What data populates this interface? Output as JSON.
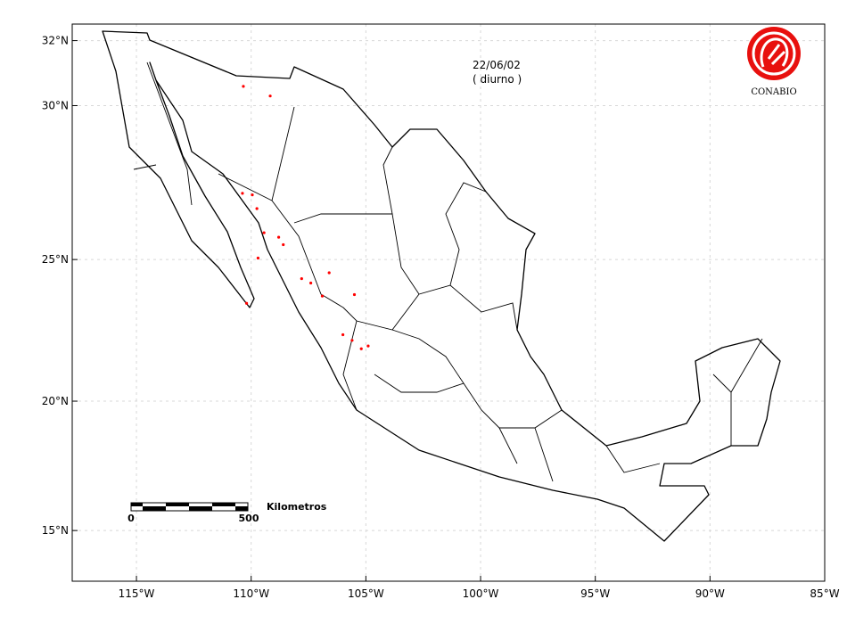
{
  "map": {
    "date": "22/06/02",
    "period": "( diurno )",
    "logo_text": "CONABIO",
    "scale_bar": {
      "start_label": "0",
      "end_label": "500",
      "unit": "Kilometros"
    },
    "xlim": [
      -117.8,
      -85
    ],
    "ylim": [
      12.9,
      32.5
    ],
    "xticks": [
      {
        "value": -115,
        "label": "115°W"
      },
      {
        "value": -110,
        "label": "110°W"
      },
      {
        "value": -105,
        "label": "105°W"
      },
      {
        "value": -100,
        "label": "100°W"
      },
      {
        "value": -95,
        "label": "95°W"
      },
      {
        "value": -90,
        "label": "90°W"
      },
      {
        "value": -85,
        "label": "85°W"
      }
    ],
    "yticks": [
      {
        "value": 32,
        "label": "32°N"
      },
      {
        "value": 30,
        "label": "30°N"
      },
      {
        "value": 25,
        "label": "25°N"
      },
      {
        "value": 20,
        "label": "20°N"
      },
      {
        "value": 15,
        "label": "15°N"
      }
    ],
    "grid": true,
    "point_color": "#ff0000",
    "fire_points": {
      "lon": [
        -110.34,
        -109.17,
        -110.38,
        -109.95,
        -109.75,
        -109.44,
        -108.8,
        -108.6,
        -107.8,
        -107.4,
        -106.6,
        -105.5,
        -106.9,
        -106.0,
        -105.6,
        -105.2,
        -104.9,
        -110.2,
        -109.7
      ],
      "lat": [
        30.6,
        30.3,
        27.2,
        27.15,
        26.7,
        25.9,
        25.75,
        25.5,
        24.35,
        24.2,
        24.55,
        23.8,
        23.75,
        22.4,
        22.2,
        21.9,
        22.0,
        23.5,
        25.05
      ]
    }
  }
}
